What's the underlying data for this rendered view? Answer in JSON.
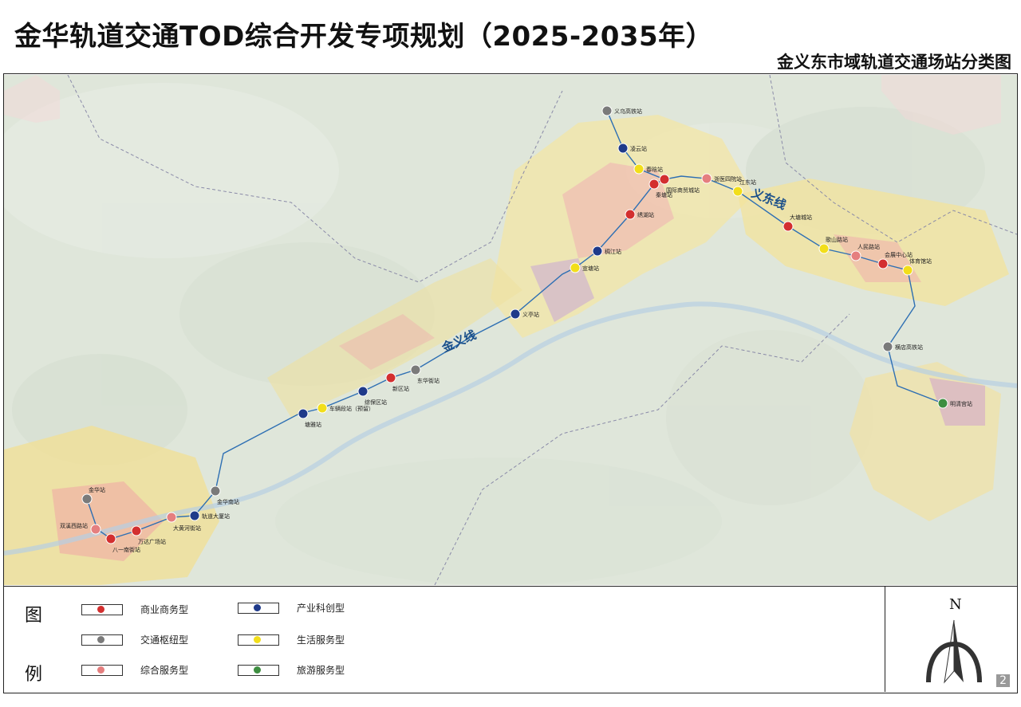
{
  "header": {
    "title": "金华轨道交通TOD综合开发专项规划（2025-2035年）",
    "subtitle": "金义东市域轨道交通场站分类图"
  },
  "map": {
    "lines": [
      {
        "name": "金义线",
        "color": "#2e6fb3"
      },
      {
        "name": "义东线",
        "color": "#2e6fb3"
      }
    ],
    "stations": [
      {
        "name": "义乌高铁站",
        "type": "hub"
      },
      {
        "name": "凌云站",
        "type": "industry"
      },
      {
        "name": "春晗站",
        "type": "life"
      },
      {
        "name": "国际商贸城站",
        "type": "commercial"
      },
      {
        "name": "浙医四院站",
        "type": "comprehensive"
      },
      {
        "name": "秦塘站",
        "type": "commercial"
      },
      {
        "name": "江东站",
        "type": "life"
      },
      {
        "name": "绣湖站",
        "type": "commercial"
      },
      {
        "name": "稠江站",
        "type": "industry"
      },
      {
        "name": "宣塘站",
        "type": "life"
      },
      {
        "name": "义亭站",
        "type": "industry"
      },
      {
        "name": "东华街站",
        "type": "hub"
      },
      {
        "name": "新区站",
        "type": "commercial"
      },
      {
        "name": "综保区站",
        "type": "industry"
      },
      {
        "name": "车辆段站（预留）",
        "type": "life"
      },
      {
        "name": "塘雅站",
        "type": "industry"
      },
      {
        "name": "金华南站",
        "type": "hub"
      },
      {
        "name": "轨道大厦站",
        "type": "industry"
      },
      {
        "name": "大黄河街站",
        "type": "comprehensive"
      },
      {
        "name": "万达广场站",
        "type": "commercial"
      },
      {
        "name": "八一南街站",
        "type": "commercial"
      },
      {
        "name": "双溪西路站",
        "type": "comprehensive"
      },
      {
        "name": "金华站",
        "type": "hub"
      },
      {
        "name": "大塘城站",
        "type": "commercial"
      },
      {
        "name": "歌山路站",
        "type": "life"
      },
      {
        "name": "人民路站",
        "type": "comprehensive"
      },
      {
        "name": "会展中心站",
        "type": "commercial"
      },
      {
        "name": "体育馆站",
        "type": "life"
      },
      {
        "name": "横店高铁站",
        "type": "hub"
      },
      {
        "name": "明清宫站",
        "type": "tourism"
      }
    ]
  },
  "legend": {
    "char_top": "图",
    "char_bottom": "例",
    "items": [
      {
        "label": "商业商务型",
        "color": "#d32f2f"
      },
      {
        "label": "交通枢纽型",
        "color": "#7a7a7a"
      },
      {
        "label": "综合服务型",
        "color": "#e57f7f"
      },
      {
        "label": "产业科创型",
        "color": "#1f3a8a"
      },
      {
        "label": "生活服务型",
        "color": "#f2de1a"
      },
      {
        "label": "旅游服务型",
        "color": "#3e8e41"
      }
    ]
  },
  "north_arrow": {
    "label": "N"
  },
  "page_number": "2",
  "colors": {
    "commercial": "#d32f2f",
    "hub": "#7a7a7a",
    "comprehensive": "#e57f7f",
    "industry": "#1f3a8a",
    "life": "#f2de1a",
    "tourism": "#3e8e41",
    "line": "#2e6fb3"
  }
}
